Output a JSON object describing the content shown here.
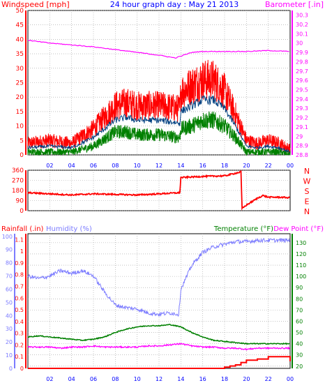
{
  "header": {
    "left_title": "Windspeed [mph]",
    "center_title": "24 hour graph day : May 21 2013",
    "right_title": "Barometer [.in]"
  },
  "legend": {
    "rainfall": "Rainfall (.in)",
    "humidity": "Humidity (%)",
    "temperature": "Temperature (°F)",
    "dewpoint": "Dew Point (°F)"
  },
  "colors": {
    "wind_gust": "#ff0000",
    "wind_avg": "#004080",
    "wind_low": "#008000",
    "barometer": "#ff00ff",
    "direction": "#ff0000",
    "rain": "#ff0000",
    "humidity": "#7b7bff",
    "temperature": "#008000",
    "dewpoint": "#ff00ff",
    "grid": "#9e9e9e",
    "background": "#ffffff"
  },
  "chart_data": [
    {
      "type": "line",
      "name": "wind",
      "x_ticks": [
        "02",
        "04",
        "06",
        "08",
        "10",
        "12",
        "14",
        "16",
        "18",
        "20",
        "22",
        "00"
      ],
      "y_left_ticks": [
        0,
        5,
        10,
        15,
        20,
        25,
        30,
        35,
        40,
        45,
        50
      ],
      "y_right_ticks": [
        "28.8",
        "28.9",
        "29",
        "29.1",
        "29.2",
        "29.3",
        "29.4",
        "29.5",
        "29.6",
        "29.7",
        "29.8",
        "29.9",
        "30",
        "30.1",
        "30.2",
        "30.3"
      ],
      "y_left_range": [
        0,
        50
      ],
      "y_right_range": [
        28.8,
        30.35
      ],
      "series": [
        {
          "key": "gust",
          "x": [
            0,
            2,
            4,
            6,
            8,
            9,
            10,
            12,
            13.9,
            14,
            15,
            16,
            17,
            18,
            19,
            20,
            21,
            22,
            23,
            24
          ],
          "y": [
            4,
            5,
            4,
            9,
            17,
            18,
            17,
            17,
            16,
            22,
            24,
            26,
            26,
            22,
            14,
            5,
            4,
            5,
            4,
            2
          ]
        },
        {
          "key": "avg",
          "x": [
            0,
            2,
            4,
            6,
            8,
            9,
            10,
            12,
            13.9,
            14,
            15,
            16,
            17,
            18,
            19,
            20,
            21,
            22,
            23,
            24
          ],
          "y": [
            2.5,
            3,
            2.5,
            6,
            12,
            13,
            12,
            12,
            11,
            15,
            17,
            19,
            19,
            16,
            10,
            3,
            2.5,
            3,
            2.5,
            1
          ]
        },
        {
          "key": "low",
          "x": [
            0,
            2,
            4,
            6,
            8,
            9,
            10,
            12,
            13.9,
            14,
            15,
            16,
            17,
            18,
            19,
            20,
            21,
            22,
            23,
            24
          ],
          "y": [
            1,
            1,
            1,
            3,
            8,
            8,
            7,
            7,
            6,
            9,
            10,
            12,
            12,
            10,
            6,
            1,
            1,
            1,
            1,
            0
          ]
        },
        {
          "key": "baro",
          "x": [
            0,
            2,
            4,
            6,
            8,
            10,
            12,
            13.5,
            14,
            15,
            16,
            18,
            20,
            22,
            24
          ],
          "y": [
            30.03,
            30.0,
            29.98,
            29.96,
            29.93,
            29.9,
            29.87,
            29.84,
            29.86,
            29.9,
            29.91,
            29.91,
            29.91,
            29.92,
            29.91
          ]
        }
      ]
    },
    {
      "type": "line",
      "name": "wind_direction",
      "y_left_ticks": [
        0,
        90,
        180,
        270,
        360
      ],
      "y_right_ticks": [
        "N",
        "W",
        "S",
        "E",
        "N"
      ],
      "y_range": [
        0,
        360
      ],
      "series": [
        {
          "key": "direction",
          "x": [
            0,
            2,
            4,
            6,
            8,
            10,
            12,
            13.9,
            14,
            15,
            16,
            18,
            19.5,
            19.6,
            20,
            20.5,
            21,
            21.5,
            22,
            23,
            24
          ],
          "y": [
            160,
            150,
            140,
            150,
            145,
            140,
            150,
            160,
            295,
            300,
            305,
            310,
            345,
            20,
            50,
            80,
            110,
            135,
            120,
            120,
            115
          ]
        }
      ]
    },
    {
      "type": "line",
      "name": "climate",
      "y_left_ticks": [
        "0",
        "0.1",
        "0.2",
        "0.3",
        "0.4",
        "0.5",
        "0.6",
        "0.7",
        "0.8",
        "0.9",
        "1",
        "1.1"
      ],
      "y_left2_ticks": [
        0,
        10,
        20,
        30,
        40,
        50,
        60,
        70,
        80,
        90,
        100
      ],
      "y_right_ticks": [
        20,
        30,
        40,
        50,
        60,
        70,
        80,
        90,
        100,
        110,
        120,
        130
      ],
      "rain_range": [
        0,
        1.15
      ],
      "humidity_range": [
        0,
        102
      ],
      "temp_range": [
        18,
        138
      ],
      "series": [
        {
          "key": "rain",
          "x": [
            0,
            10,
            13.9,
            14,
            16,
            17,
            18,
            18.5,
            19,
            19.5,
            20,
            21,
            22,
            23,
            24
          ],
          "y": [
            0,
            0,
            0,
            0,
            0,
            0,
            0.01,
            0.02,
            0.03,
            0.05,
            0.07,
            0.08,
            0.1,
            0.1,
            0.06
          ]
        },
        {
          "key": "humidity",
          "x": [
            0,
            1,
            2,
            3,
            4,
            5,
            6,
            7,
            8,
            9,
            10,
            11,
            12,
            13,
            13.8,
            14,
            15,
            16,
            17,
            18,
            19,
            20,
            21,
            22,
            23,
            24
          ],
          "y": [
            70,
            68,
            70,
            74,
            72,
            74,
            70,
            58,
            48,
            46,
            45,
            42,
            41,
            42,
            41,
            60,
            78,
            88,
            92,
            94,
            96,
            96,
            97,
            97,
            97,
            97
          ]
        },
        {
          "key": "temperature",
          "x": [
            0,
            1,
            2,
            3,
            4,
            5,
            6,
            7,
            8,
            9,
            10,
            11,
            12,
            13,
            14,
            15,
            16,
            17,
            18,
            19,
            20,
            21,
            22,
            23,
            24
          ],
          "y": [
            46,
            47,
            46,
            45,
            44,
            43,
            44,
            46,
            50,
            53,
            55,
            56,
            56,
            57,
            55,
            50,
            46,
            43,
            42,
            41,
            40,
            40,
            40,
            40,
            40
          ]
        },
        {
          "key": "dewpoint",
          "x": [
            0,
            1,
            2,
            3,
            4,
            5,
            6,
            7,
            8,
            9,
            10,
            11,
            12,
            13,
            14,
            15,
            16,
            17,
            18,
            19,
            20,
            21,
            22,
            23,
            24
          ],
          "y": [
            37,
            37,
            37,
            36,
            37,
            37,
            38,
            37,
            37,
            37,
            37,
            38,
            38,
            39,
            40,
            38,
            37,
            37,
            36,
            36,
            35,
            36,
            36,
            36,
            36
          ]
        }
      ]
    }
  ]
}
